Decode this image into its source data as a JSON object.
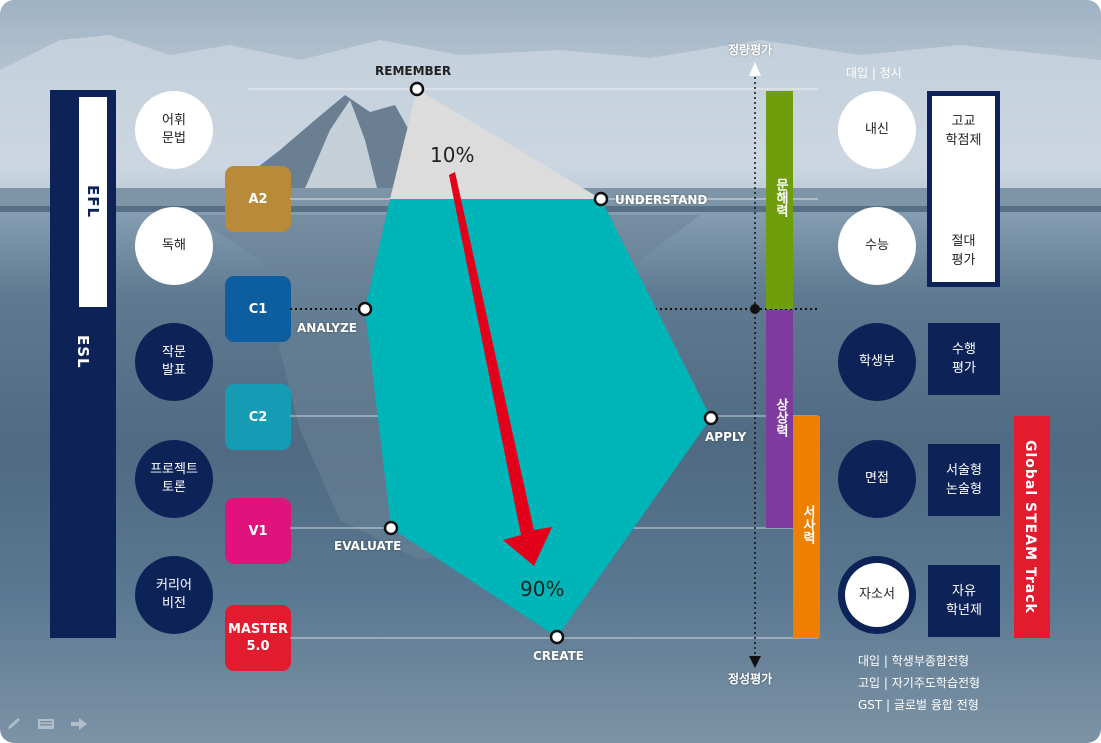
{
  "left_bar": {
    "top": "EFL",
    "bottom": "ESL"
  },
  "left_circles": [
    {
      "label": "어휘\n문법",
      "style": "w"
    },
    {
      "label": "독해",
      "style": "w"
    },
    {
      "label": "작문\n발표",
      "style": "d"
    },
    {
      "label": "프로젝트\n토론",
      "style": "d"
    },
    {
      "label": "커리어\n비전",
      "style": "d"
    }
  ],
  "levels": [
    {
      "label": "A2",
      "color": "#b88a3a"
    },
    {
      "label": "C1",
      "color": "#0d5ea0"
    },
    {
      "label": "C2",
      "color": "#169bb5"
    },
    {
      "label": "V1",
      "color": "#e0127c"
    },
    {
      "label": "MASTER\n5.0",
      "color": "#e21b2e"
    }
  ],
  "bloom": {
    "remember": "REMEMBER",
    "understand": "UNDERSTAND",
    "analyze": "ANALYZE",
    "apply": "APPLY",
    "evaluate": "EVALUATE",
    "create": "CREATE",
    "top_pct": "10%",
    "bottom_pct": "90%"
  },
  "axis": {
    "top": "정량평가",
    "bottom": "정성평가"
  },
  "competency_bars": [
    {
      "label": "문해력",
      "color": "#6f9e0d"
    },
    {
      "label": "상상력",
      "color": "#7f3aa0"
    },
    {
      "label": "서사력",
      "color": "#ee8000"
    }
  ],
  "right_header": "대입 | 정시",
  "right_circles": [
    {
      "label": "내신",
      "style": "w"
    },
    {
      "label": "수능",
      "style": "w"
    },
    {
      "label": "학생부",
      "style": "d"
    },
    {
      "label": "면접",
      "style": "d"
    },
    {
      "label": "자소서",
      "style": "w"
    }
  ],
  "right_white_box": {
    "top": "고교\n학점제",
    "bottom": "절대\n평가"
  },
  "right_boxes": [
    {
      "label": "수행\n평가"
    },
    {
      "label": "서술형\n논술형"
    },
    {
      "label": "자유\n학년제"
    }
  ],
  "gst_label": "Global STEAM Track",
  "footnotes": [
    "대입 | 학생부종합전형",
    "고입 | 자기주도학습전형",
    "GST | 글로벌 융합 전형"
  ],
  "icons": [
    "pencil-icon",
    "slides-icon",
    "arrow-right-icon"
  ]
}
